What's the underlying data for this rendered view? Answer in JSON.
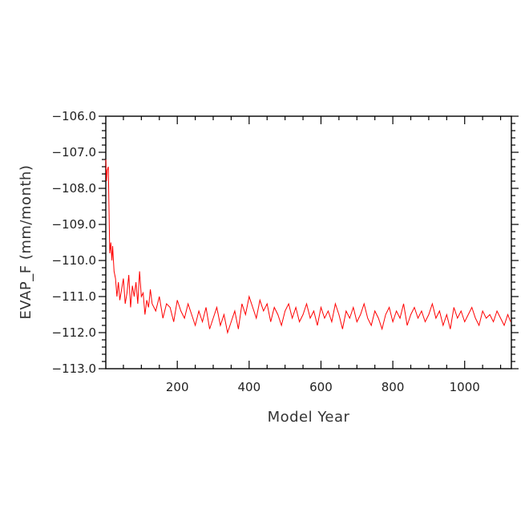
{
  "chart_data": {
    "type": "line",
    "xlabel": "Model Year",
    "ylabel": "EVAP_F (mm/month)",
    "xlim": [
      1,
      1130
    ],
    "ylim": [
      -113.0,
      -106.0
    ],
    "x_ticks": [
      200,
      400,
      600,
      800,
      1000
    ],
    "x_tick_labels": [
      "200",
      "400",
      "600",
      "800",
      "1000"
    ],
    "y_ticks": [
      -113.0,
      -112.0,
      -111.0,
      -110.0,
      -109.0,
      -108.0,
      -107.0,
      -106.0
    ],
    "y_tick_labels": [
      "−113.0",
      "−112.0",
      "−111.0",
      "−110.0",
      "−109.0",
      "−108.0",
      "−107.0",
      "−106.0"
    ],
    "grid": false,
    "series": [
      {
        "color": "#ff0000",
        "x": [
          1,
          3,
          5,
          8,
          12,
          15,
          18,
          20,
          24,
          28,
          32,
          36,
          40,
          45,
          50,
          55,
          60,
          65,
          70,
          75,
          80,
          85,
          90,
          95,
          100,
          105,
          110,
          115,
          120,
          125,
          130,
          140,
          150,
          160,
          170,
          180,
          190,
          200,
          210,
          220,
          230,
          240,
          250,
          260,
          270,
          280,
          290,
          300,
          310,
          320,
          330,
          340,
          350,
          360,
          370,
          380,
          390,
          400,
          410,
          420,
          430,
          440,
          450,
          460,
          470,
          480,
          490,
          500,
          510,
          520,
          530,
          540,
          550,
          560,
          570,
          580,
          590,
          600,
          610,
          620,
          630,
          640,
          650,
          660,
          670,
          680,
          690,
          700,
          710,
          720,
          730,
          740,
          750,
          760,
          770,
          780,
          790,
          800,
          810,
          820,
          830,
          840,
          850,
          860,
          870,
          880,
          890,
          900,
          910,
          920,
          930,
          940,
          950,
          960,
          970,
          980,
          990,
          1000,
          1010,
          1020,
          1030,
          1040,
          1050,
          1060,
          1070,
          1080,
          1090,
          1100,
          1110,
          1120,
          1128
        ],
        "values": [
          -107.2,
          -107.8,
          -107.5,
          -107.4,
          -109.8,
          -109.5,
          -110.0,
          -109.6,
          -110.3,
          -110.5,
          -111.0,
          -110.6,
          -111.1,
          -110.8,
          -110.5,
          -111.2,
          -110.9,
          -110.4,
          -111.3,
          -110.7,
          -111.0,
          -110.6,
          -111.2,
          -110.3,
          -111.0,
          -110.9,
          -111.5,
          -111.1,
          -111.3,
          -110.8,
          -111.2,
          -111.4,
          -111.0,
          -111.6,
          -111.2,
          -111.3,
          -111.7,
          -111.1,
          -111.4,
          -111.6,
          -111.2,
          -111.5,
          -111.8,
          -111.4,
          -111.7,
          -111.3,
          -111.9,
          -111.6,
          -111.3,
          -111.8,
          -111.5,
          -112.0,
          -111.7,
          -111.4,
          -111.9,
          -111.2,
          -111.5,
          -111.0,
          -111.3,
          -111.6,
          -111.1,
          -111.4,
          -111.2,
          -111.7,
          -111.3,
          -111.5,
          -111.8,
          -111.4,
          -111.2,
          -111.6,
          -111.3,
          -111.7,
          -111.5,
          -111.2,
          -111.6,
          -111.4,
          -111.8,
          -111.3,
          -111.6,
          -111.4,
          -111.7,
          -111.2,
          -111.5,
          -111.9,
          -111.4,
          -111.6,
          -111.3,
          -111.7,
          -111.5,
          -111.2,
          -111.6,
          -111.8,
          -111.4,
          -111.6,
          -111.9,
          -111.5,
          -111.3,
          -111.7,
          -111.4,
          -111.6,
          -111.2,
          -111.8,
          -111.5,
          -111.3,
          -111.6,
          -111.4,
          -111.7,
          -111.5,
          -111.2,
          -111.6,
          -111.4,
          -111.8,
          -111.5,
          -111.9,
          -111.3,
          -111.6,
          -111.4,
          -111.7,
          -111.5,
          -111.3,
          -111.6,
          -111.8,
          -111.4,
          -111.6,
          -111.5,
          -111.7,
          -111.4,
          -111.6,
          -111.8,
          -111.5,
          -111.7
        ]
      }
    ]
  }
}
